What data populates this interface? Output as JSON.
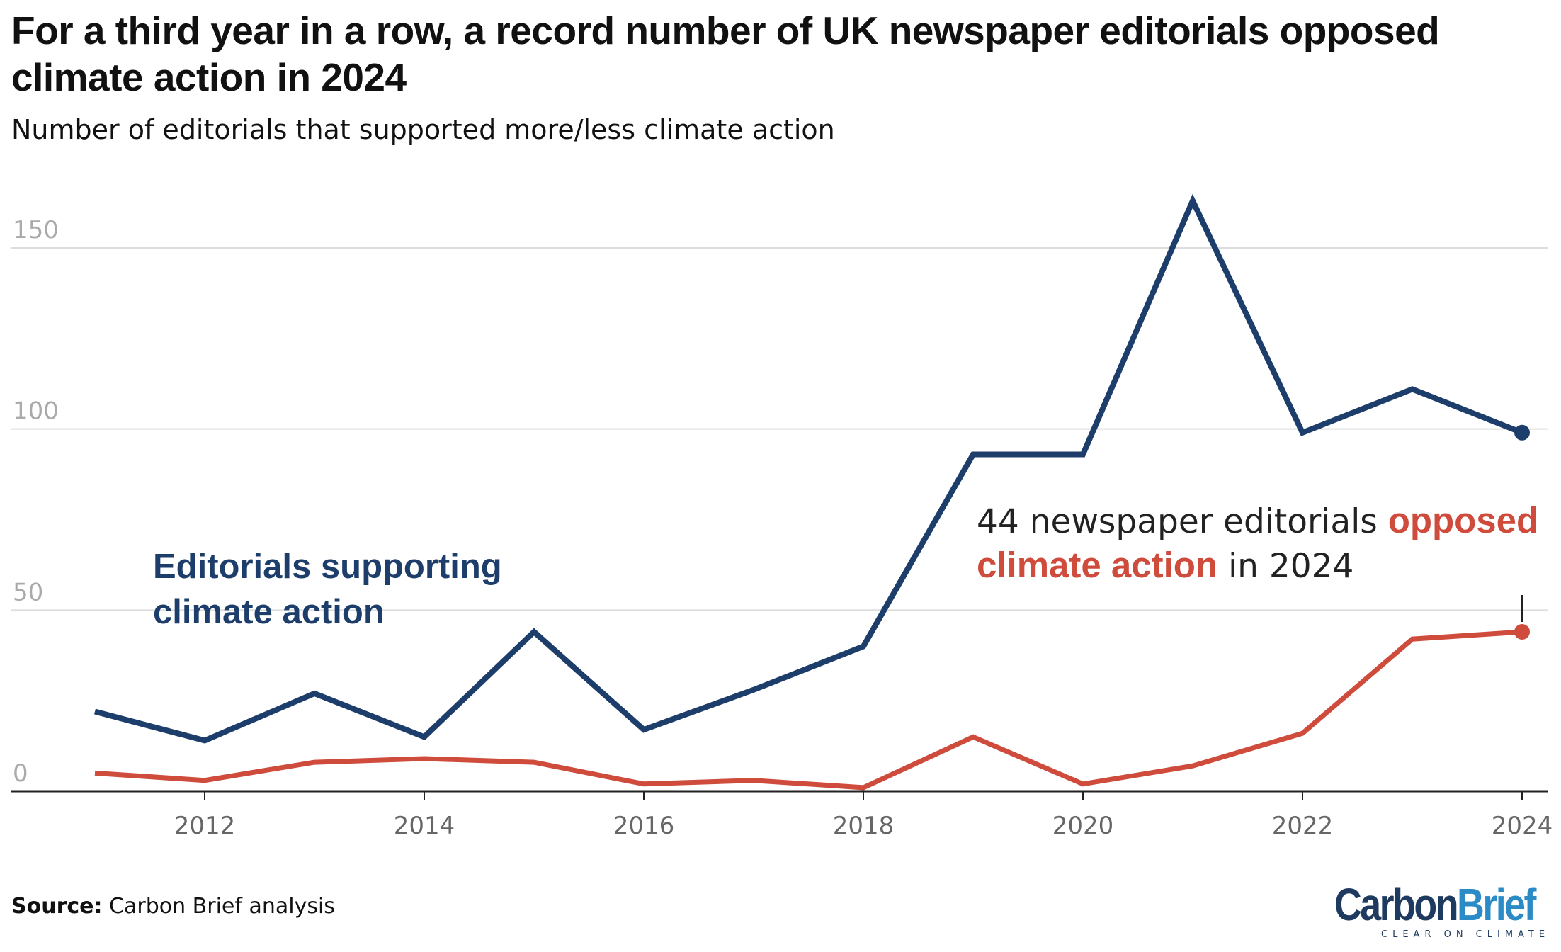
{
  "title": "For a third year in a row, a record number of UK newspaper editorials opposed climate action in 2024",
  "subtitle": "Number of editorials that supported more/less climate action",
  "source_label": "Source:",
  "source_text": "Carbon Brief analysis",
  "logo": {
    "carbon": "Carbon",
    "brief": "Brief",
    "tagline": "CLEAR ON CLIMATE"
  },
  "colors": {
    "support": "#1d3e6a",
    "oppose": "#cf4b3c",
    "grid": "#dddddd",
    "tick_text": "#aaaaaa",
    "xtick_text": "#666666",
    "axis": "#222222"
  },
  "chart_data": {
    "type": "line",
    "x": [
      2011,
      2012,
      2013,
      2014,
      2015,
      2016,
      2017,
      2018,
      2019,
      2020,
      2021,
      2022,
      2023,
      2024
    ],
    "xticks": [
      2012,
      2014,
      2016,
      2018,
      2020,
      2022,
      2024
    ],
    "yticks": [
      0,
      50,
      100,
      150
    ],
    "xlim": [
      2010.2,
      2024.2
    ],
    "ylim": [
      0,
      165
    ],
    "grid": true,
    "series": [
      {
        "name": "Editorials supporting climate action",
        "label_lines": [
          "Editorials supporting",
          "climate action"
        ],
        "color_key": "support",
        "values": [
          22,
          14,
          27,
          15,
          44,
          17,
          28,
          40,
          93,
          93,
          163,
          99,
          111,
          99
        ]
      },
      {
        "name": "opposed climate action",
        "color_key": "oppose",
        "values": [
          5,
          3,
          8,
          9,
          8,
          2,
          3,
          1,
          15,
          2,
          7,
          16,
          42,
          44
        ]
      }
    ],
    "annotation": {
      "line1_plain": "44 newspaper editorials ",
      "line1_highlight": "opposed",
      "line2_highlight": "climate action",
      "line2_plain": " in 2024"
    }
  }
}
